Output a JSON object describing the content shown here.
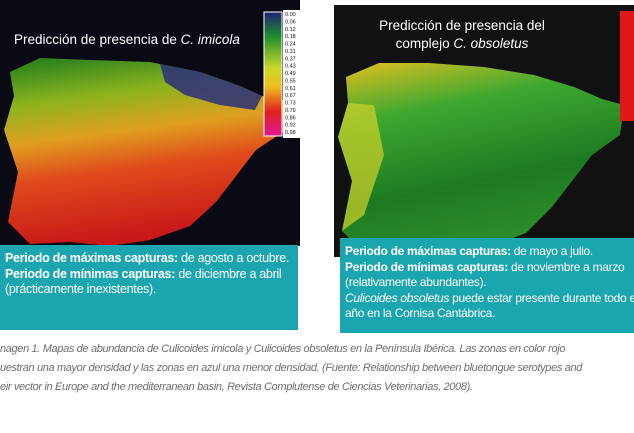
{
  "left_map": {
    "title": [
      "Predicción de presencia de",
      "C. imicola"
    ],
    "legend_labels": [
      "0.00",
      "0.06",
      "0.12",
      "0.18",
      "0.24",
      "0.31",
      "0.37",
      "0.43",
      "0.49",
      "0.55",
      "0.61",
      "0.67",
      "0.73",
      "0.79",
      "0.86",
      "0.92",
      "0.98"
    ]
  },
  "right_map": {
    "title": [
      "Predicción de presencia del",
      "complejo",
      "C. obsoletus"
    ]
  },
  "left_box": {
    "lines": [
      [
        "Periodo de máximas capturas:",
        "de agosto a octubre."
      ],
      [
        "Periodo de mínimas capturas:",
        "de diciembre a abril"
      ],
      [
        "(prácticamente inexistentes)."
      ]
    ]
  },
  "right_box": {
    "lines": [
      [
        "Periodo de máximas capturas:",
        "de mayo a julio."
      ],
      [
        "Periodo de mínimas capturas:",
        "de noviembre a marzo"
      ],
      [
        "(relativamente abundantes)."
      ],
      [
        "Culicoides obsoletus",
        "puede estar presente durante todo el"
      ],
      [
        "año en la Cornisa Cantábrica."
      ]
    ]
  },
  "caption": {
    "lines": [
      "nagen 1. Mapas de abundancia de Culicoides imicola y Culicoides obsoletus en la Península Ibérica. Las zonas en color rojo",
      "uestran una mayor densidad y las zonas en azul una menor densidad. (Fuente: Relationship between bluetongue serotypes and",
      "eir vector in Europe and the mediterranean basin, Revista Complutense de Ciencias Veterinarias, 2008)."
    ]
  }
}
